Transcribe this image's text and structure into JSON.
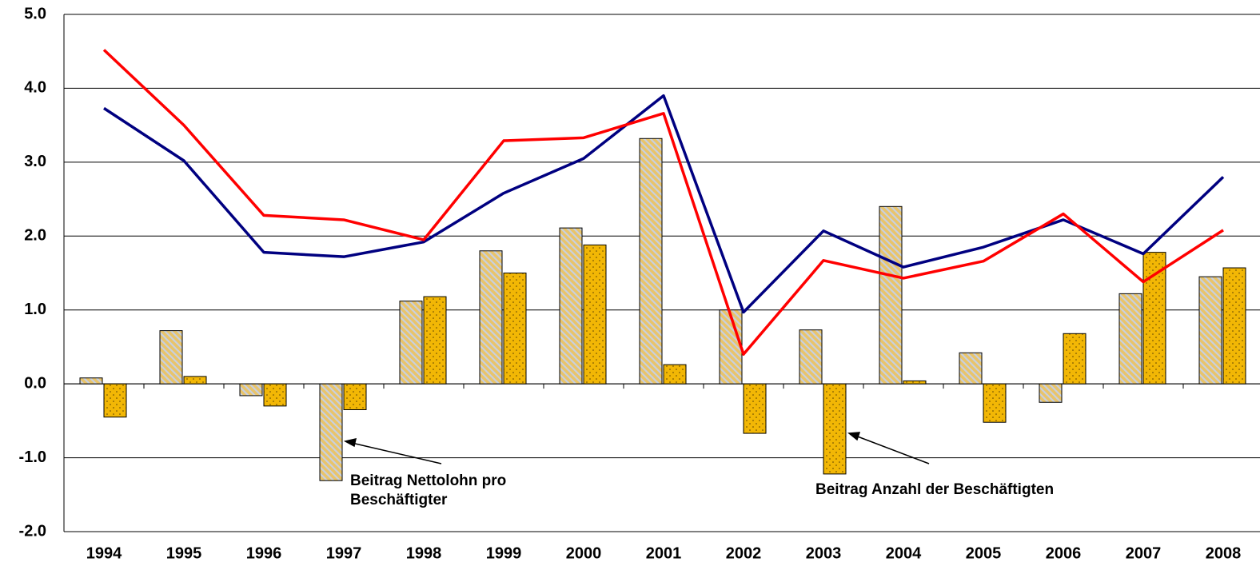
{
  "chart_data": {
    "type": "bar-line",
    "categories": [
      "1994",
      "1995",
      "1996",
      "1997",
      "1998",
      "1999",
      "2000",
      "2001",
      "2002",
      "2003",
      "2004",
      "2005",
      "2006",
      "2007",
      "2008"
    ],
    "series": [
      {
        "kind": "bar",
        "pattern": "hatch",
        "color": "#e9c46a",
        "values": [
          0.08,
          0.72,
          -0.16,
          -1.31,
          1.12,
          1.8,
          2.11,
          3.32,
          1.0,
          0.73,
          2.4,
          0.42,
          -0.25,
          1.22,
          1.45
        ]
      },
      {
        "kind": "bar",
        "pattern": "dots",
        "color": "#f2b705",
        "values": [
          -0.45,
          0.1,
          -0.3,
          -0.35,
          1.18,
          1.5,
          1.88,
          0.26,
          -0.67,
          -1.22,
          0.04,
          -0.52,
          0.68,
          1.78,
          1.57
        ]
      },
      {
        "kind": "line",
        "color": "#000080",
        "values": [
          3.73,
          3.02,
          1.78,
          1.72,
          1.92,
          2.58,
          3.05,
          3.9,
          0.97,
          2.07,
          1.58,
          1.85,
          2.22,
          1.76,
          2.8
        ]
      },
      {
        "kind": "line",
        "color": "#ff0000",
        "values": [
          4.52,
          3.5,
          2.28,
          2.22,
          1.95,
          3.29,
          3.33,
          3.66,
          0.4,
          1.67,
          1.43,
          1.66,
          2.3,
          1.38,
          2.08
        ]
      }
    ],
    "ylim": [
      -2,
      5
    ],
    "yticks": [
      {
        "value": -2,
        "label": "-2.0"
      },
      {
        "value": -1,
        "label": "-1.0"
      },
      {
        "value": 0,
        "label": "0.0"
      },
      {
        "value": 1,
        "label": "1.0"
      },
      {
        "value": 2,
        "label": "2.0"
      },
      {
        "value": 3,
        "label": "3.0"
      },
      {
        "value": 4,
        "label": "4.0"
      },
      {
        "value": 5,
        "label": "5.0"
      }
    ],
    "grid": true,
    "annotations": [
      {
        "lines": [
          "Beitrag Nettolohn pro",
          "Beschäftigter"
        ]
      },
      {
        "lines": [
          "Beitrag Anzahl der Beschäftigten"
        ]
      }
    ]
  }
}
